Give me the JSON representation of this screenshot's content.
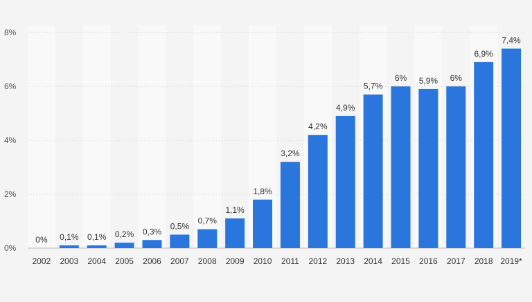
{
  "colors": {
    "background": "#f4f4f4",
    "plot_band_light": "#f9f9f9",
    "bar": "#2a76dd"
  },
  "chart_data": {
    "type": "bar",
    "title": "",
    "xlabel": "",
    "ylabel": "",
    "categories": [
      "2002",
      "2003",
      "2004",
      "2005",
      "2006",
      "2007",
      "2008",
      "2009",
      "2010",
      "2011",
      "2012",
      "2013",
      "2014",
      "2015",
      "2016",
      "2017",
      "2018",
      "2019*"
    ],
    "values": [
      0,
      0.1,
      0.1,
      0.2,
      0.3,
      0.5,
      0.7,
      1.1,
      1.8,
      3.2,
      4.2,
      4.9,
      5.7,
      6,
      5.9,
      6,
      6.9,
      7.4
    ],
    "value_labels": [
      "0%",
      "0,1%",
      "0,1%",
      "0,2%",
      "0,3%",
      "0,5%",
      "0,7%",
      "1,1%",
      "1,8%",
      "3,2%",
      "4,2%",
      "4,9%",
      "5,7%",
      "6%",
      "5,9%",
      "6%",
      "6,9%",
      "7,4%"
    ],
    "ylim": [
      0,
      8
    ],
    "yticks": [
      0,
      2,
      4,
      6,
      8
    ],
    "ytick_labels": [
      "0%",
      "2%",
      "4%",
      "6%",
      "8%"
    ],
    "grid": true,
    "legend": "none"
  }
}
